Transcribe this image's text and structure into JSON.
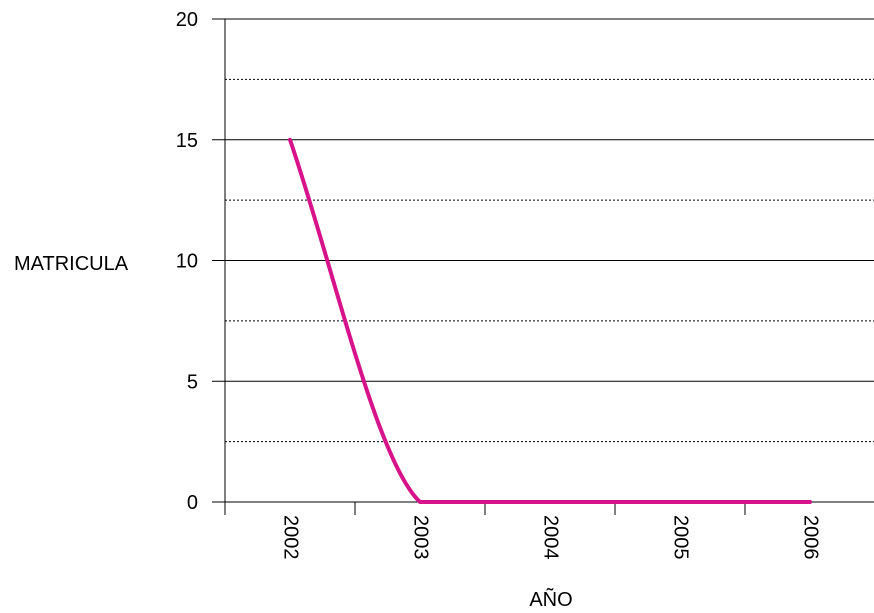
{
  "chart_data": {
    "type": "line",
    "title": "",
    "xlabel": "AÑO",
    "ylabel": "MATRICULA",
    "categories": [
      "2002",
      "2003",
      "2004",
      "2005",
      "2006"
    ],
    "series": [
      {
        "values": [
          15,
          0,
          0,
          0,
          0
        ]
      }
    ],
    "ylim": [
      0,
      20
    ],
    "y_major_ticks": [
      "0",
      "5",
      "10",
      "15",
      "20"
    ],
    "major_grid": true,
    "minor_grid": "dotted",
    "legend": "none",
    "line_color": "#d6138a",
    "smooth": true
  }
}
